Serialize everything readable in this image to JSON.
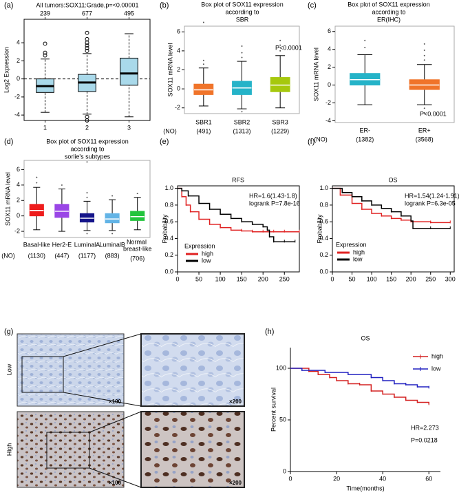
{
  "chart_data": [
    {
      "type": "box",
      "label": "(a)",
      "title": [
        "All tumors:SOX11:Grade,p=<0.00001"
      ],
      "ylabel": "Log2 Expression",
      "categories": [
        "1",
        "2",
        "3"
      ],
      "counts": [
        239,
        677,
        495
      ],
      "colors": [
        "#a9d9ea",
        "#a9d9ea",
        "#a9d9ea"
      ],
      "boxes": [
        {
          "low": -3.7,
          "q1": -1.5,
          "median": -0.8,
          "q3": 0,
          "high": 2.2,
          "outliers": [
            2.6,
            2.9,
            3.9
          ]
        },
        {
          "low": -3.9,
          "q1": -1.4,
          "median": -0.4,
          "q3": 0.5,
          "high": 2.8,
          "outliers": [
            3.1,
            3.4,
            3.7,
            4.0,
            4.4,
            5.1,
            -4.2,
            -4.6
          ]
        },
        {
          "low": -4.2,
          "q1": -0.7,
          "median": 0.6,
          "q3": 2.3,
          "high": 5.0,
          "outliers": []
        }
      ],
      "reference_line": 0,
      "ylim": [
        -4.6,
        6.6
      ],
      "yticks": [
        -4,
        -2,
        0,
        2,
        4
      ]
    },
    {
      "type": "box",
      "label": "(b)",
      "title": [
        "Box plot of SOX11 expression",
        "according to",
        "SBR"
      ],
      "ylabel": "SOX11 mRNA level",
      "categories": [
        "SBR1",
        "SBR2",
        "SBR3"
      ],
      "counts": [
        "(491)",
        "(1313)",
        "(1229)"
      ],
      "count_label": "(NO)",
      "colors": [
        "#f0742a",
        "#25b3c8",
        "#a6c80e"
      ],
      "boxes": [
        {
          "low": -1.8,
          "q1": -0.6,
          "median": -0.1,
          "q3": 0.5,
          "high": 2.2,
          "outliers": [
            2.6,
            3.0,
            7.0
          ]
        },
        {
          "low": -2.1,
          "q1": -0.6,
          "median": 0.1,
          "q3": 0.8,
          "high": 2.9,
          "outliers": [
            3.3,
            3.8,
            4.5,
            -2.4
          ]
        },
        {
          "low": -2.0,
          "q1": -0.3,
          "median": 0.4,
          "q3": 1.2,
          "high": 3.5,
          "outliers": [
            4.0,
            4.6,
            5.1
          ]
        }
      ],
      "annotations": [
        "P<0.0001"
      ],
      "ylim": [
        -2.6,
        6.6
      ],
      "yticks": [
        -2,
        0,
        2,
        4,
        6
      ]
    },
    {
      "type": "box",
      "label": "(c)",
      "title": [
        "Box plot of SOX11 expression",
        "according to",
        "ER(IHC)"
      ],
      "ylabel": "SOX11 mRNA level",
      "categories": [
        "ER-",
        "ER+"
      ],
      "counts": [
        "(1382)",
        "(3568)"
      ],
      "count_label": "(NO)",
      "colors": [
        "#25b3c8",
        "#f0742a"
      ],
      "boxes": [
        {
          "low": -2.2,
          "q1": 0,
          "median": 0.6,
          "q3": 1.3,
          "high": 3.4,
          "outliers": [
            4.2,
            5.0
          ]
        },
        {
          "low": -2.2,
          "q1": -0.5,
          "median": 0,
          "q3": 0.6,
          "high": 2.3,
          "outliers": [
            2.8,
            3.3,
            3.9,
            4.6,
            -2.6,
            -3.1
          ]
        }
      ],
      "annotations": [
        "P<0.0001"
      ],
      "ylim": [
        -4.2,
        6.6
      ],
      "yticks": [
        -4,
        -2,
        0,
        2,
        4,
        6
      ]
    },
    {
      "type": "box",
      "label": "(d)",
      "title": [
        "Box plot of SOX11 expression",
        "according to",
        "sorlie's subtypes"
      ],
      "ylabel": "SOX11 mRNA level",
      "categories": [
        "Basal-like",
        "Her2-E",
        "LuminalA",
        "LuminalB",
        "Normal breast-like"
      ],
      "counts": [
        "(1130)",
        "(447)",
        "(1177)",
        "(883)",
        "(706)"
      ],
      "count_label": "(NO)",
      "colors": [
        "#ee1c1c",
        "#9a46e6",
        "#14148a",
        "#63b4e6",
        "#22c43c"
      ],
      "boxes": [
        {
          "low": -1.8,
          "q1": 0,
          "median": 0.7,
          "q3": 1.5,
          "high": 3.7,
          "outliers": [
            4.3,
            5.0
          ]
        },
        {
          "low": -2.0,
          "q1": -0.2,
          "median": 0.6,
          "q3": 1.5,
          "high": 3.5,
          "outliers": [
            4.0
          ]
        },
        {
          "low": -1.9,
          "q1": -0.8,
          "median": -0.3,
          "q3": 0.3,
          "high": 1.9,
          "outliers": [
            2.4,
            3.0,
            -2.3,
            7.0
          ]
        },
        {
          "low": -1.9,
          "q1": -0.9,
          "median": -0.4,
          "q3": 0.3,
          "high": 2.1,
          "outliers": [
            2.6,
            -2.3
          ]
        },
        {
          "low": -1.8,
          "q1": -0.6,
          "median": -0.1,
          "q3": 0.6,
          "high": 2.4,
          "outliers": [
            2.9
          ]
        }
      ],
      "ylim": [
        -2.8,
        7.2
      ],
      "yticks": [
        -2,
        0,
        2,
        4,
        6
      ]
    },
    {
      "type": "km",
      "label": "(e)",
      "title": [
        "RFS"
      ],
      "ylabel": "Probability",
      "legend_title": "Expression",
      "annotations": [
        "HR=1.6(1.43-1.8)",
        "logrank P=7.8e-16"
      ],
      "series": [
        {
          "name": "high",
          "color": "#e02222",
          "x": [
            0,
            10,
            20,
            30,
            50,
            75,
            100,
            125,
            150,
            175,
            200,
            225,
            250,
            285
          ],
          "values": [
            1,
            0.9,
            0.8,
            0.72,
            0.63,
            0.57,
            0.53,
            0.5,
            0.49,
            0.48,
            0.48,
            0.48,
            0.48,
            0.48
          ]
        },
        {
          "name": "low",
          "color": "#000000",
          "x": [
            0,
            10,
            25,
            50,
            75,
            100,
            125,
            150,
            175,
            200,
            210,
            215,
            225,
            250,
            275
          ],
          "values": [
            1,
            0.97,
            0.91,
            0.82,
            0.75,
            0.69,
            0.64,
            0.6,
            0.57,
            0.54,
            0.5,
            0.42,
            0.36,
            0.36,
            0.36
          ]
        }
      ],
      "xlim": [
        0,
        285
      ],
      "xticks": [
        0,
        50,
        100,
        150,
        200,
        250
      ],
      "ylim": [
        0,
        1.03
      ],
      "yticks": [
        {
          "value": 0,
          "label": "0.0"
        },
        0.2,
        0.4,
        0.6,
        0.8,
        {
          "value": 1,
          "label": "1.0"
        }
      ]
    },
    {
      "type": "km",
      "label": "(f)",
      "title": [
        "OS"
      ],
      "ylabel": "Probability",
      "legend_title": "Expression",
      "annotations": [
        "HR=1.54(1.24-1.91)",
        "logrank P=6.3e-05"
      ],
      "series": [
        {
          "name": "high",
          "color": "#e02222",
          "x": [
            0,
            20,
            50,
            75,
            100,
            125,
            150,
            175,
            200,
            250,
            300
          ],
          "values": [
            1,
            0.92,
            0.82,
            0.75,
            0.7,
            0.67,
            0.64,
            0.62,
            0.6,
            0.59,
            0.59
          ]
        },
        {
          "name": "low",
          "color": "#000000",
          "x": [
            0,
            25,
            50,
            75,
            100,
            125,
            150,
            175,
            200,
            205,
            250,
            300
          ],
          "values": [
            1,
            0.95,
            0.9,
            0.85,
            0.8,
            0.76,
            0.72,
            0.67,
            0.61,
            0.52,
            0.52,
            0.52
          ]
        }
      ],
      "xlim": [
        0,
        310
      ],
      "xticks": [
        0,
        50,
        100,
        150,
        200,
        250,
        300
      ],
      "ylim": [
        0,
        1.03
      ],
      "yticks": [
        {
          "value": 0,
          "label": "0.0"
        },
        0.2,
        0.4,
        0.6,
        0.8,
        {
          "value": 1,
          "label": "1.0"
        }
      ]
    },
    {
      "type": "km",
      "label": "(h)",
      "title": [
        "OS"
      ],
      "ylabel": "Percent survival",
      "xlabel": "Time(months)",
      "annotations": [
        "HR=2.273",
        "P=0.0218"
      ],
      "series": [
        {
          "name": "high",
          "color": "#d42020",
          "x": [
            0,
            8,
            12,
            17,
            20,
            25,
            30,
            35,
            40,
            45,
            50,
            55,
            60
          ],
          "values": [
            100,
            97,
            94,
            91,
            88,
            85,
            84,
            78,
            75,
            72,
            69,
            67,
            65
          ]
        },
        {
          "name": "low",
          "color": "#2020c0",
          "x": [
            0,
            5,
            15,
            25,
            35,
            40,
            45,
            50,
            55,
            60
          ],
          "values": [
            100,
            98,
            96,
            94,
            91,
            88,
            85,
            84,
            82,
            81
          ]
        }
      ],
      "xlim": [
        0,
        65
      ],
      "xticks": [
        0,
        20,
        40,
        60
      ],
      "ylim": [
        0,
        120
      ],
      "yticks": [
        0,
        50,
        100
      ]
    }
  ],
  "image_panel": {
    "label": "(g)",
    "rows": [
      "Low",
      "High"
    ],
    "magnifications": [
      "×100",
      "×200"
    ]
  }
}
